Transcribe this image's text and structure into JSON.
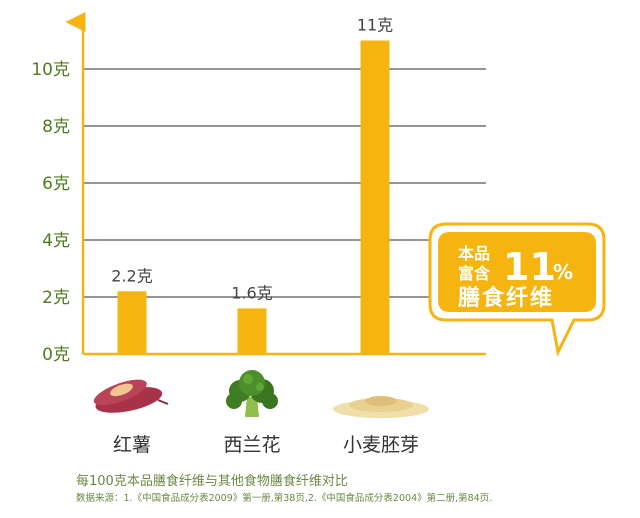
{
  "chart_data": {
    "type": "bar",
    "categories": [
      "红薯",
      "西兰花",
      "小麦胚芽"
    ],
    "values": [
      2.2,
      1.6,
      11
    ],
    "data_labels": [
      "2.2克",
      "1.6克",
      "11克"
    ],
    "y_ticks": [
      {
        "value": 0,
        "label": "0克"
      },
      {
        "value": 2,
        "label": "2克"
      },
      {
        "value": 4,
        "label": "4克"
      },
      {
        "value": 6,
        "label": "6克"
      },
      {
        "value": 8,
        "label": "8克"
      },
      {
        "value": 10,
        "label": "10克"
      }
    ],
    "ylim": [
      0,
      11.5
    ],
    "grid": true,
    "colors": {
      "bar": "#f5b40f",
      "axis": "#f5b40f",
      "grid": "#555555",
      "tick": "#4f7b1e",
      "badge": "#f5b40f"
    }
  },
  "icons": [
    "sweet-potato-icon",
    "broccoli-icon",
    "wheat-germ-icon"
  ],
  "badge": {
    "line1": "本品",
    "line2": "富含",
    "percent": "11",
    "percent_sign": "%",
    "line3": "膳食纤维"
  },
  "footer": {
    "title": "每100克本品膳食纤维与其他食物膳食纤维对比",
    "source": "数据来源：1.《中国食品成分表2009》第一册,第38页,2.《中国食品成分表2004》第二册,第84页."
  }
}
